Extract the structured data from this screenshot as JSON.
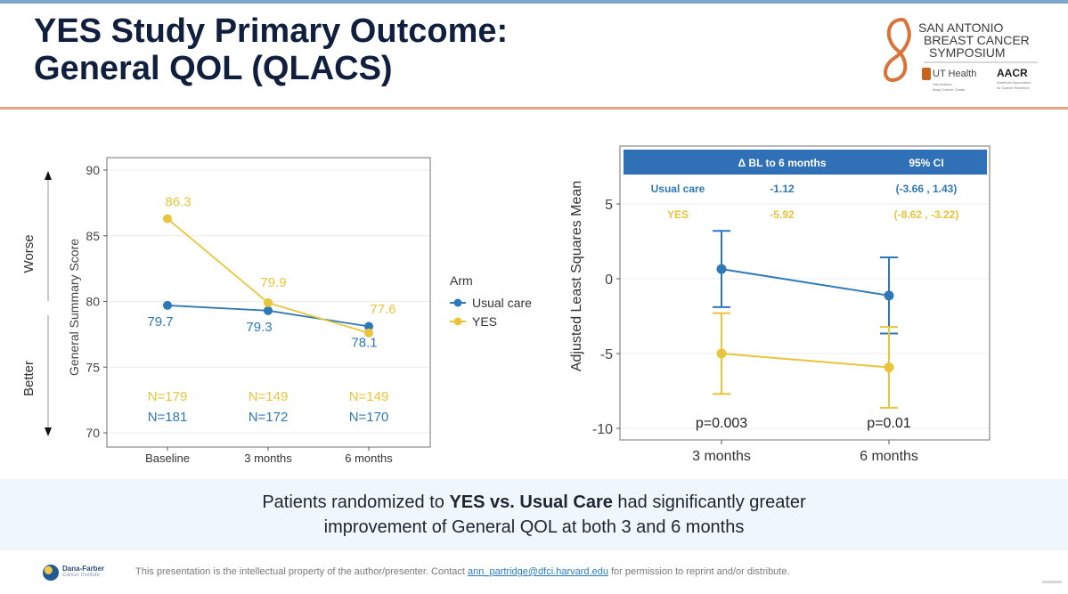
{
  "slide": {
    "title_line1": "YES Study Primary Outcome:",
    "title_line2": "General QOL (QLACS)",
    "logo": {
      "name_line1": "SAN ANTONIO",
      "name_line2": "BREAST CANCER",
      "name_line3": "SYMPOSIUM",
      "partner1": "UT Health",
      "partner1_sub1": "San Antonio",
      "partner1_sub2": "Mays Cancer Center",
      "partner2": "AACR",
      "partner2_sub1": "American Association",
      "partner2_sub2": "for Cancer Research"
    },
    "callout": {
      "pre": "Patients randomized to ",
      "bold": "YES vs. Usual Care",
      "post": " had significantly greater",
      "line2": "improvement of General QOL at both 3 and 6 months"
    },
    "footer": {
      "org_name": "Dana-Farber",
      "org_sub": "Cancer Institute",
      "text_pre": "This presentation is the intellectual property of the author/presenter. Contact ",
      "email": "ann_partridge@dfci.harvard.edu",
      "text_post": " for permission to reprint and/or distribute."
    }
  },
  "colors": {
    "usual_care": "#2f78b8",
    "yes": "#e8c53a",
    "title": "#0f1f3d",
    "table_header": "#2f70b7",
    "accent_rule": "#e8a27d"
  },
  "chart_data": [
    {
      "type": "line",
      "title": "",
      "xlabel": "",
      "ylabel": "General Summary Score",
      "categories": [
        "Baseline",
        "3 months",
        "6 months"
      ],
      "ylim": [
        70,
        90
      ],
      "yticks": [
        70,
        75,
        80,
        85,
        90
      ],
      "grid": true,
      "direction_labels": {
        "top": "Worse",
        "bottom": "Better"
      },
      "series": [
        {
          "name": "Usual care",
          "values": [
            79.7,
            79.3,
            78.1
          ],
          "labels": [
            "79.7",
            "79.3",
            "78.1"
          ],
          "n": [
            "N=181",
            "N=172",
            "N=170"
          ]
        },
        {
          "name": "YES",
          "values": [
            86.3,
            79.9,
            77.6
          ],
          "labels": [
            "86.3",
            "79.9",
            "77.6"
          ],
          "n": [
            "N=179",
            "N=149",
            "N=149"
          ]
        }
      ],
      "legend": {
        "title": "Arm",
        "entries": [
          "Usual care",
          "YES"
        ],
        "placement": "right"
      }
    },
    {
      "type": "line",
      "title": "",
      "xlabel": "",
      "ylabel": "Adjusted Least Squares Mean",
      "categories": [
        "3 months",
        "6 months"
      ],
      "ylim": [
        -10.6,
        7.8
      ],
      "yticks": [
        -10,
        -5,
        0,
        5
      ],
      "grid": true,
      "series": [
        {
          "name": "Usual care",
          "values": [
            0.65,
            -1.12
          ],
          "lower": [
            -1.9,
            -3.66
          ],
          "upper": [
            3.2,
            1.43
          ]
        },
        {
          "name": "YES",
          "values": [
            -5.0,
            -5.92
          ],
          "lower": [
            -7.7,
            -8.62
          ],
          "upper": [
            -2.3,
            -3.22
          ]
        }
      ],
      "annotations": [
        "p=0.003",
        "p=0.01"
      ],
      "table": {
        "headers": [
          "",
          "Δ BL to 6 months",
          "95% CI"
        ],
        "rows": [
          [
            "Usual care",
            "-1.12",
            "(-3.66 , 1.43)"
          ],
          [
            "YES",
            "-5.92",
            "(-8.62 , -3.22)"
          ]
        ]
      }
    }
  ]
}
